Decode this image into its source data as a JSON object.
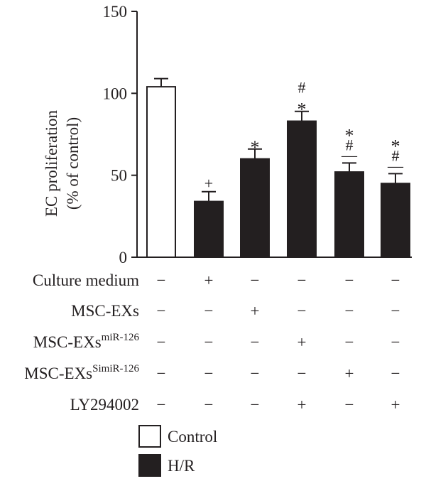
{
  "chart_data": {
    "type": "bar",
    "ylabel_line1": "EC proliferation",
    "ylabel_line2": "(% of control)",
    "ylim": [
      0,
      150
    ],
    "yticks": [
      0,
      50,
      100,
      150
    ],
    "groups": [
      {
        "series": "Control",
        "value": 104,
        "error": 5,
        "marks": []
      },
      {
        "series": "H/R",
        "value": 34,
        "error": 6,
        "marks": [
          "+"
        ]
      },
      {
        "series": "H/R",
        "value": 60,
        "error": 6,
        "marks": [
          "*"
        ]
      },
      {
        "series": "H/R",
        "value": 83,
        "error": 6,
        "marks": [
          "*",
          "#"
        ]
      },
      {
        "series": "H/R",
        "value": 52,
        "error": 5.5,
        "marks": [
          "—",
          "#",
          "*"
        ]
      },
      {
        "series": "H/R",
        "value": 45,
        "error": 6,
        "marks": [
          "—",
          "#",
          "*"
        ]
      }
    ],
    "series": [
      {
        "name": "Control",
        "color": "#ffffff"
      },
      {
        "name": "H/R",
        "color": "#231f20"
      }
    ],
    "conditions": [
      {
        "label": "Culture medium",
        "sup": "",
        "values": [
          "−",
          "+",
          "−",
          "−",
          "−",
          "−"
        ]
      },
      {
        "label": "MSC-EXs",
        "sup": "",
        "values": [
          "−",
          "−",
          "+",
          "−",
          "−",
          "−"
        ]
      },
      {
        "label": "MSC-EXs",
        "sup": "miR-126",
        "values": [
          "−",
          "−",
          "−",
          "+",
          "−",
          "−"
        ]
      },
      {
        "label": "MSC-EXs",
        "sup": "SimiR-126",
        "values": [
          "−",
          "−",
          "−",
          "−",
          "+",
          "−"
        ]
      },
      {
        "label": "LY294002",
        "sup": "",
        "values": [
          "−",
          "−",
          "−",
          "+",
          "−",
          "+"
        ]
      }
    ],
    "legend": [
      {
        "label": "Control",
        "fill": "#ffffff"
      },
      {
        "label": "H/R",
        "fill": "#231f20"
      }
    ]
  }
}
